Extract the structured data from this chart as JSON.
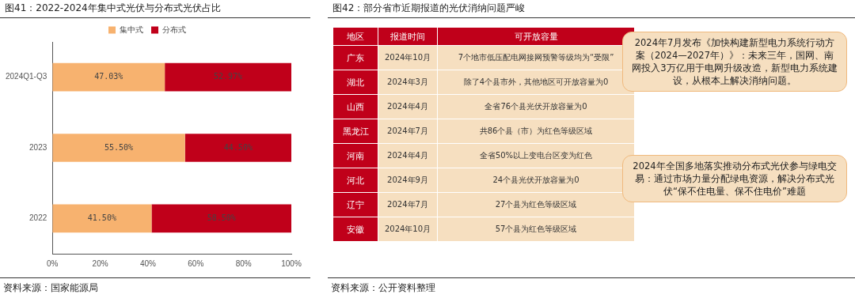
{
  "chart_data": [
    {
      "type": "bar",
      "orientation": "horizontal",
      "stacked": true,
      "title": "图41：2022-2024年集中式光伏与分布式光伏占比",
      "categories": [
        "2024Q1-Q3",
        "2023",
        "2022"
      ],
      "series": [
        {
          "name": "集中式",
          "color": "#f7b26f",
          "values": [
            47.03,
            55.5,
            41.5
          ],
          "value_labels": [
            "47.03%",
            "55.50%",
            "41.50%"
          ]
        },
        {
          "name": "分布式",
          "color": "#c0001a",
          "values": [
            52.97,
            44.5,
            58.5
          ],
          "value_labels": [
            "52.97%",
            "44.50%",
            "58.50%"
          ]
        }
      ],
      "xlim": [
        0,
        100
      ],
      "xticks": [
        {
          "value": 0,
          "label": "0%"
        },
        {
          "value": 20,
          "label": "20%"
        },
        {
          "value": 40,
          "label": "40%"
        },
        {
          "value": 60,
          "label": "60%"
        },
        {
          "value": 80,
          "label": "80%"
        },
        {
          "value": 100,
          "label": "100%"
        }
      ],
      "grid": false,
      "legend": "top",
      "annotations": [
        "资料来源：国家能源局"
      ]
    },
    {
      "type": "other",
      "title": "图42：部分省市近期报道的光伏消纳问题严峻",
      "annotations": [
        "地区",
        "报道时间",
        "可开放容量",
        "广东",
        "2024年10月",
        "7个地市低压配电网接网预警等级均为“受限”",
        "湖北",
        "2024年3月",
        "除了4个县市外，其他地区可开放容量为0",
        "山西",
        "2024年4月",
        "全省76个县光伏开放容量为0",
        "黑龙江",
        "2024年7月",
        "共86个县（市）为红色等级区域",
        "河南",
        "2024年4月",
        "全省50%以上变电台区变为红色",
        "河北",
        "2024年9月",
        "24个县光伏开放容量为0",
        "辽宁",
        "2024年7月",
        "27个县为红色等级区域",
        "安徽",
        "2024年10月",
        "57个县为红色等级区域",
        "2024年7月发布《加快构建新型电力系统行动方案（2024—2027年）》：未来三年，国网、南网投入3万亿用于电网升级改造，新型电力系统建设，从根本上解决消纳问题。",
        "2024年全国多地落实推动分布式光伏参与绿电交易：通过市场力量分配绿电资源，解决分布式光伏“保不住电量、保不住电价”难题",
        "资料来源：公开资料整理"
      ]
    }
  ]
}
